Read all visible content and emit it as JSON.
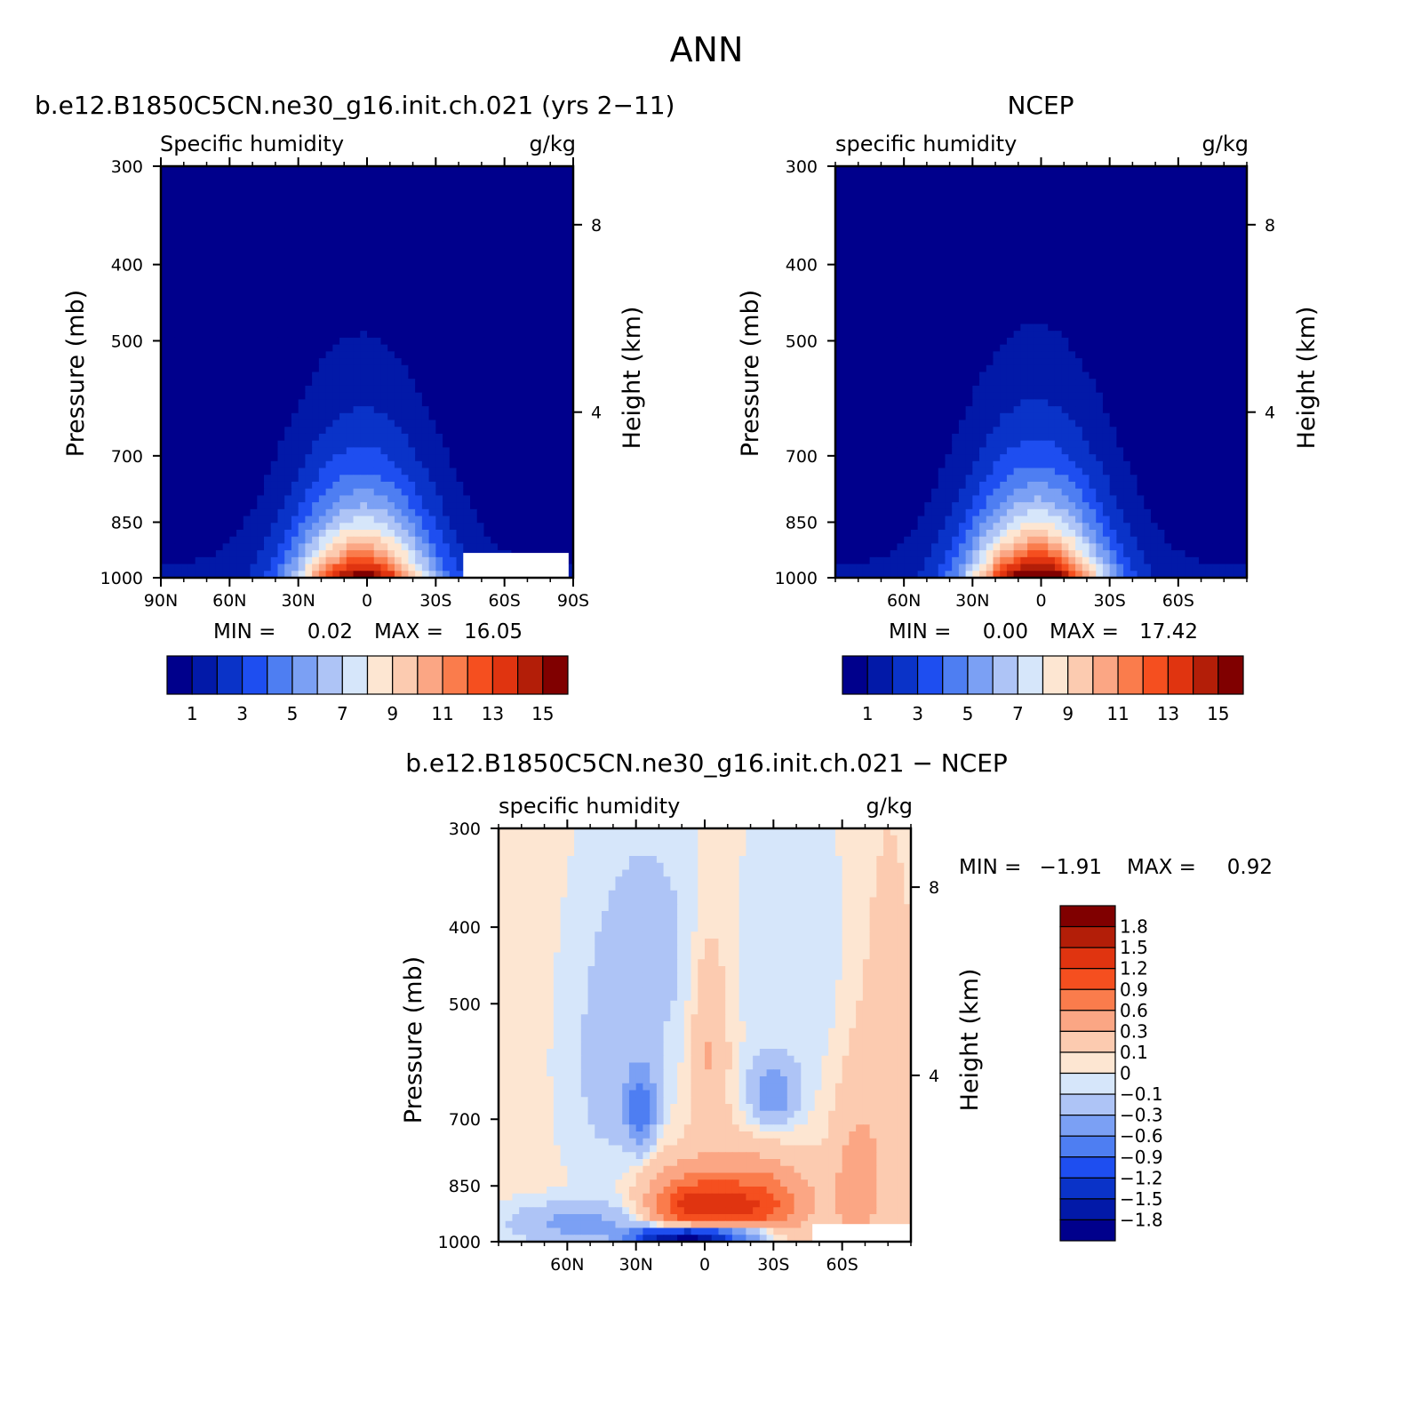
{
  "figure_title": "ANN",
  "colors": {
    "main_scale": [
      "#00008c",
      "#0219a8",
      "#0a33c8",
      "#1e4ef0",
      "#4e7ef2",
      "#7ba0f4",
      "#aec4f6",
      "#d6e6fa",
      "#fde6d2",
      "#fccbb0",
      "#fba684",
      "#fa7c4c",
      "#f54f1f",
      "#e03410",
      "#b31e08",
      "#800000"
    ],
    "diff_scale": [
      "#00008c",
      "#0219a8",
      "#0a33c8",
      "#1e4ef0",
      "#4e7ef2",
      "#7ba0f4",
      "#aec4f6",
      "#d6e6fa",
      "#fde6d2",
      "#fccbb0",
      "#fba684",
      "#fa7c4c",
      "#f54f1f",
      "#e03410",
      "#b31e08",
      "#800000"
    ]
  },
  "chart_data": [
    {
      "type": "contour",
      "panel": "model",
      "title": "b.e12.B1850C5CN.ne30_g16.init.ch.021 (yrs 2−11)",
      "left_label": "Specific humidity",
      "right_label": "g/kg",
      "ylabel": "Pressure (mb)",
      "y2label": "Height (km)",
      "y_ticks": [
        "300",
        "400",
        "500",
        "700",
        "850",
        "1000"
      ],
      "y_values": [
        300,
        400,
        500,
        700,
        850,
        1000
      ],
      "y2_ticks": [
        "8",
        "4"
      ],
      "x_ticks": [
        "90N",
        "60N",
        "30N",
        "0",
        "30S",
        "60S",
        "90S"
      ],
      "x_values": [
        90,
        60,
        30,
        0,
        -30,
        -60,
        -90
      ],
      "xlim": [
        90,
        -90
      ],
      "ylim": [
        1000,
        300
      ],
      "min_label": "MIN =",
      "min_value": "0.02",
      "max_label": "MAX =",
      "max_value": "16.05",
      "colorbar_labels": [
        "1",
        "3",
        "5",
        "7",
        "9",
        "11",
        "13",
        "15"
      ],
      "levels": [
        0.5,
        1,
        2,
        3,
        4,
        5,
        6,
        7,
        8,
        9,
        10,
        11,
        12,
        13,
        14,
        15
      ],
      "surface_peak_g_kg": 16.05
    },
    {
      "type": "contour",
      "panel": "obs",
      "title": "NCEP",
      "left_label": "specific humidity",
      "right_label": "g/kg",
      "ylabel": "Pressure (mb)",
      "y2label": "Height (km)",
      "y_ticks": [
        "300",
        "400",
        "500",
        "700",
        "850",
        "1000"
      ],
      "y_values": [
        300,
        400,
        500,
        700,
        850,
        1000
      ],
      "y2_ticks": [
        "8",
        "4"
      ],
      "x_ticks": [
        "60N",
        "30N",
        "0",
        "30S",
        "60S"
      ],
      "x_values": [
        60,
        30,
        0,
        -30,
        -60
      ],
      "xlim": [
        90,
        -90
      ],
      "ylim": [
        1000,
        300
      ],
      "min_label": "MIN =",
      "min_value": "0.00",
      "max_label": "MAX =",
      "max_value": "17.42",
      "colorbar_labels": [
        "1",
        "3",
        "5",
        "7",
        "9",
        "11",
        "13",
        "15"
      ],
      "levels": [
        0.5,
        1,
        2,
        3,
        4,
        5,
        6,
        7,
        8,
        9,
        10,
        11,
        12,
        13,
        14,
        15
      ],
      "surface_peak_g_kg": 17.42
    },
    {
      "type": "contour",
      "panel": "difference",
      "title": "b.e12.B1850C5CN.ne30_g16.init.ch.021 − NCEP",
      "left_label": "specific humidity",
      "right_label": "g/kg",
      "ylabel": "Pressure (mb)",
      "y2label": "Height (km)",
      "y_ticks": [
        "300",
        "400",
        "500",
        "700",
        "850",
        "1000"
      ],
      "y_values": [
        300,
        400,
        500,
        700,
        850,
        1000
      ],
      "y2_ticks": [
        "8",
        "4"
      ],
      "x_ticks": [
        "60N",
        "30N",
        "0",
        "30S",
        "60S"
      ],
      "x_values": [
        60,
        30,
        0,
        -30,
        -60
      ],
      "xlim": [
        90,
        -90
      ],
      "ylim": [
        1000,
        300
      ],
      "min_label": "MIN =",
      "min_value": "−1.91",
      "max_label": "MAX =",
      "max_value": "0.92",
      "colorbar_labels": [
        "1.8",
        "1.5",
        "1.2",
        "0.9",
        "0.6",
        "0.3",
        "0.1",
        "0",
        "−0.1",
        "−0.3",
        "−0.6",
        "−0.9",
        "−1.2",
        "−1.5",
        "−1.8"
      ],
      "blobs": [
        {
          "lat": -3,
          "p": 910,
          "v": 0.7,
          "w": 22,
          "h": 70
        },
        {
          "lat": -25,
          "p": 900,
          "v": 0.6,
          "w": 20,
          "h": 90
        },
        {
          "lat": 10,
          "p": 900,
          "v": 0.5,
          "w": 14,
          "h": 80
        },
        {
          "lat": -2,
          "p": 570,
          "v": 0.3,
          "w": 8,
          "h": 170
        },
        {
          "lat": -10,
          "p": 860,
          "v": 0.35,
          "w": 35,
          "h": 110
        },
        {
          "lat": -65,
          "p": 870,
          "v": 0.3,
          "w": 10,
          "h": 250
        },
        {
          "lat": -80,
          "p": 700,
          "v": 0.2,
          "w": 14,
          "h": 400
        },
        {
          "lat": 8,
          "p": 985,
          "v": -1.9,
          "w": 16,
          "h": 28
        },
        {
          "lat": -12,
          "p": 980,
          "v": -1.1,
          "w": 18,
          "h": 30
        },
        {
          "lat": 25,
          "p": 985,
          "v": -0.8,
          "w": 12,
          "h": 25
        },
        {
          "lat": 28,
          "p": 680,
          "v": -0.8,
          "w": 6,
          "h": 70
        },
        {
          "lat": -30,
          "p": 650,
          "v": -0.5,
          "w": 10,
          "h": 60
        },
        {
          "lat": 40,
          "p": 600,
          "v": -0.2,
          "w": 20,
          "h": 260
        },
        {
          "lat": 55,
          "p": 950,
          "v": -0.4,
          "w": 30,
          "h": 55
        },
        {
          "lat": 20,
          "p": 420,
          "v": -0.15,
          "w": 20,
          "h": 150
        },
        {
          "lat": -40,
          "p": 450,
          "v": -0.1,
          "w": 25,
          "h": 200
        }
      ]
    }
  ]
}
